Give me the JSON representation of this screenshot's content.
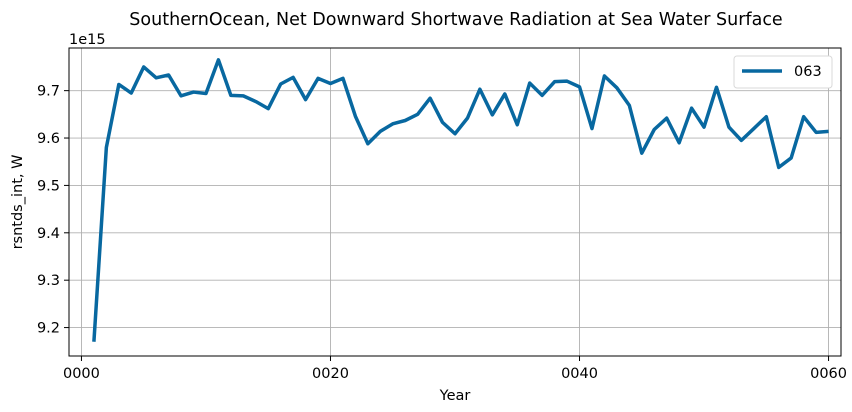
{
  "chart_data": {
    "type": "line",
    "title": "SouthernOcean, Net Downward Shortwave Radiation at Sea Water Surface",
    "xlabel": "Year",
    "ylabel": "rsntds_int, W",
    "y_offset_label": "1e15",
    "y_scale": 1000000000000000.0,
    "xlim": [
      -1,
      61
    ],
    "ylim": [
      9.14,
      9.79
    ],
    "grid": true,
    "legend_position": "top-right",
    "x_ticks": [
      0,
      20,
      40,
      60
    ],
    "x_tick_labels": [
      "0000",
      "0020",
      "0040",
      "0060"
    ],
    "y_ticks": [
      9.2,
      9.3,
      9.4,
      9.5,
      9.6,
      9.7
    ],
    "y_tick_labels": [
      "9.2",
      "9.3",
      "9.4",
      "9.5",
      "9.6",
      "9.7"
    ],
    "series": [
      {
        "name": "063",
        "color": "#0868a0",
        "x": [
          1,
          2,
          3,
          4,
          5,
          6,
          7,
          8,
          9,
          10,
          11,
          12,
          13,
          14,
          15,
          16,
          17,
          18,
          19,
          20,
          21,
          22,
          23,
          24,
          25,
          26,
          27,
          28,
          29,
          30,
          31,
          32,
          33,
          34,
          35,
          36,
          37,
          38,
          39,
          40,
          41,
          42,
          43,
          44,
          45,
          46,
          47,
          48,
          49,
          50,
          51,
          52,
          53,
          54,
          55,
          56,
          57,
          58,
          59,
          60
        ],
        "values": [
          9.17,
          9.58,
          9.713,
          9.695,
          9.75,
          9.727,
          9.733,
          9.689,
          9.697,
          9.694,
          9.765,
          9.69,
          9.689,
          9.677,
          9.662,
          9.714,
          9.728,
          9.681,
          9.726,
          9.715,
          9.726,
          9.646,
          9.588,
          9.614,
          9.63,
          9.637,
          9.65,
          9.684,
          9.633,
          9.609,
          9.642,
          9.703,
          9.649,
          9.693,
          9.628,
          9.716,
          9.69,
          9.719,
          9.72,
          9.708,
          9.62,
          9.731,
          9.706,
          9.669,
          9.568,
          9.618,
          9.642,
          9.59,
          9.663,
          9.623,
          9.707,
          9.623,
          9.595,
          9.62,
          9.645,
          9.538,
          9.558,
          9.645,
          9.612,
          9.614
        ]
      }
    ]
  }
}
